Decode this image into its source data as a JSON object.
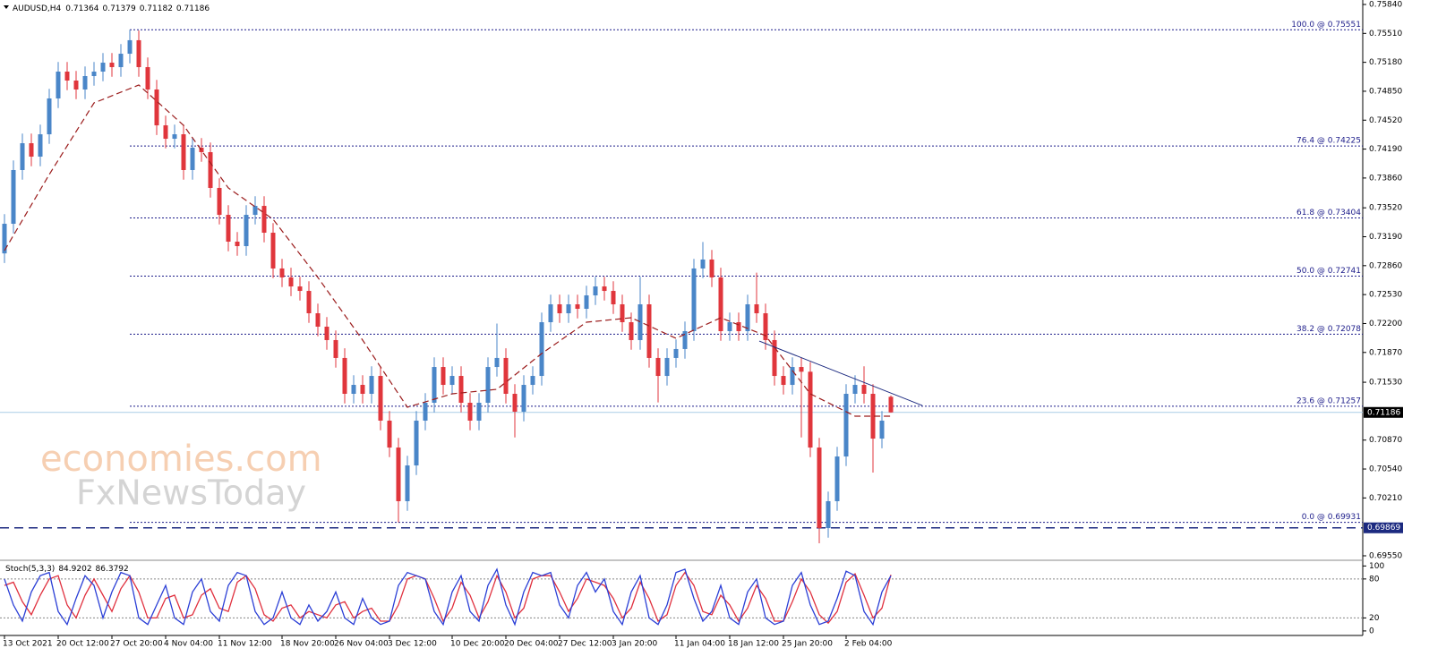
{
  "chart_data": [
    {
      "type": "candlestick",
      "title": "AUDUSD,H4",
      "categories": [
        "13 Oct 2021",
        null,
        null,
        null,
        null,
        null,
        "20 Oct 12:00",
        null,
        null,
        null,
        null,
        null,
        "27 Oct 20:00",
        null,
        null,
        null,
        null,
        null,
        "4 Nov 04:00",
        null,
        null,
        null,
        null,
        null,
        "11 Nov 12:00",
        null,
        null,
        null,
        null,
        null,
        null,
        "18 Nov 20:00",
        null,
        null,
        null,
        null,
        null,
        "26 Nov 04:00",
        null,
        null,
        null,
        null,
        null,
        "3 Dec 12:00",
        null,
        null,
        null,
        null,
        null,
        null,
        "10 Dec 20:00",
        null,
        null,
        null,
        null,
        null,
        "20 Dec 04:00",
        null,
        null,
        null,
        null,
        null,
        "27 Dec 12:00",
        null,
        null,
        null,
        null,
        null,
        "3 Jan 20:00",
        null,
        null,
        null,
        null,
        null,
        null,
        "11 Jan 04:00",
        null,
        null,
        null,
        null,
        null,
        "18 Jan 12:00",
        null,
        null,
        null,
        null,
        null,
        "25 Jan 20:00",
        null,
        null,
        null,
        null,
        null,
        null,
        "2 Feb 04:00",
        null,
        null,
        null,
        null,
        null
      ],
      "open": [
        0.73,
        0.73338,
        0.73951,
        0.74257,
        0.74104,
        0.74359,
        0.74768,
        0.75074,
        0.74972,
        0.7487,
        0.75023,
        0.75074,
        0.75176,
        0.75125,
        0.75278,
        0.75432,
        0.75125,
        0.7487,
        0.74461,
        0.74308,
        0.74359,
        0.73951,
        0.74206,
        0.74155,
        0.73747,
        0.7344,
        0.73134,
        0.73083,
        0.7344,
        0.73542,
        0.73236,
        0.72828,
        0.72726,
        0.72623,
        0.72572,
        0.72317,
        0.72164,
        0.72011,
        0.71807,
        0.71398,
        0.715,
        0.71398,
        0.71602,
        0.71092,
        0.70785,
        0.70173,
        0.70581,
        0.71092,
        0.71296,
        0.71704,
        0.715,
        0.71602,
        0.71296,
        0.71092,
        0.71296,
        0.71704,
        0.71807,
        0.71398,
        0.71194,
        0.715,
        0.71602,
        0.72215,
        0.72419,
        0.72317,
        0.72419,
        0.72368,
        0.72521,
        0.72623,
        0.72572,
        0.72419,
        0.72215,
        0.72011,
        0.72419,
        0.71807,
        0.71602,
        0.71807,
        0.71909,
        0.72113,
        0.72828,
        0.7293,
        0.72726,
        0.72113,
        0.72215,
        0.72113,
        0.72419,
        0.72317,
        0.72011,
        0.71602,
        0.715,
        0.71704,
        0.7165,
        0.70785,
        0.69866,
        0.70173,
        0.70683,
        0.71398,
        0.715,
        0.71398,
        0.70887,
        0.71364
      ],
      "high": [
        0.73448,
        0.74061,
        0.74367,
        0.74367,
        0.74469,
        0.74878,
        0.75184,
        0.75184,
        0.75082,
        0.75133,
        0.75184,
        0.75286,
        0.75286,
        0.75388,
        0.75551,
        0.75542,
        0.75235,
        0.7498,
        0.74571,
        0.74469,
        0.74469,
        0.74316,
        0.74316,
        0.74265,
        0.73857,
        0.7355,
        0.73244,
        0.7355,
        0.73652,
        0.73652,
        0.73346,
        0.72938,
        0.72836,
        0.72733,
        0.72682,
        0.72427,
        0.72274,
        0.72121,
        0.71917,
        0.7161,
        0.7161,
        0.71712,
        0.71712,
        0.71202,
        0.70895,
        0.70691,
        0.71202,
        0.71406,
        0.71814,
        0.71814,
        0.71712,
        0.71712,
        0.71406,
        0.71406,
        0.71814,
        0.722,
        0.71917,
        0.71508,
        0.7161,
        0.71712,
        0.72325,
        0.72529,
        0.72529,
        0.72529,
        0.72529,
        0.72631,
        0.72733,
        0.72733,
        0.72682,
        0.72529,
        0.72325,
        0.72733,
        0.72529,
        0.71917,
        0.71917,
        0.72019,
        0.72223,
        0.72938,
        0.7313,
        0.7304,
        0.72836,
        0.72325,
        0.72325,
        0.72529,
        0.7278,
        0.72427,
        0.72121,
        0.71712,
        0.71814,
        0.71814,
        0.7176,
        0.70895,
        0.70283,
        0.70793,
        0.71508,
        0.7161,
        0.71712,
        0.71508,
        0.71202,
        0.71379
      ],
      "low": [
        0.7289,
        0.73228,
        0.73841,
        0.73994,
        0.73994,
        0.74249,
        0.74658,
        0.74862,
        0.7476,
        0.7476,
        0.74913,
        0.74964,
        0.75015,
        0.75015,
        0.75168,
        0.75015,
        0.7476,
        0.74351,
        0.74198,
        0.74198,
        0.73841,
        0.73841,
        0.74045,
        0.73637,
        0.7333,
        0.73024,
        0.72973,
        0.72973,
        0.7333,
        0.73126,
        0.72718,
        0.72616,
        0.72513,
        0.72462,
        0.72207,
        0.72054,
        0.71901,
        0.71697,
        0.71288,
        0.71288,
        0.71288,
        0.71288,
        0.70982,
        0.70675,
        0.69931,
        0.70063,
        0.70471,
        0.70982,
        0.71186,
        0.7139,
        0.7139,
        0.71186,
        0.70982,
        0.70982,
        0.71186,
        0.71594,
        0.71288,
        0.709,
        0.71084,
        0.7139,
        0.71492,
        0.72105,
        0.72207,
        0.72207,
        0.72258,
        0.72258,
        0.72411,
        0.72462,
        0.72309,
        0.72105,
        0.71901,
        0.71901,
        0.71697,
        0.713,
        0.71492,
        0.71697,
        0.71799,
        0.72003,
        0.72718,
        0.72616,
        0.72003,
        0.72003,
        0.72003,
        0.72003,
        0.72207,
        0.71901,
        0.71492,
        0.7139,
        0.7139,
        0.709,
        0.70675,
        0.69693,
        0.69756,
        0.70063,
        0.70573,
        0.71288,
        0.71288,
        0.705,
        0.70777,
        0.71182
      ],
      "close": [
        0.73338,
        0.73951,
        0.74257,
        0.74104,
        0.74359,
        0.74768,
        0.75074,
        0.74972,
        0.7487,
        0.75023,
        0.75074,
        0.75176,
        0.75125,
        0.75278,
        0.75432,
        0.75125,
        0.7487,
        0.74461,
        0.74308,
        0.74359,
        0.73951,
        0.74206,
        0.74155,
        0.73747,
        0.7344,
        0.73134,
        0.73083,
        0.7344,
        0.73542,
        0.73236,
        0.72828,
        0.72726,
        0.72623,
        0.72572,
        0.72317,
        0.72164,
        0.72011,
        0.71807,
        0.71398,
        0.715,
        0.71398,
        0.71602,
        0.71092,
        0.70785,
        0.70173,
        0.70581,
        0.71092,
        0.71296,
        0.71704,
        0.715,
        0.71602,
        0.71296,
        0.71092,
        0.71296,
        0.71704,
        0.71807,
        0.71398,
        0.71194,
        0.715,
        0.71602,
        0.72215,
        0.72419,
        0.72317,
        0.72419,
        0.72368,
        0.72521,
        0.72623,
        0.72572,
        0.72419,
        0.72215,
        0.72011,
        0.72419,
        0.71807,
        0.71602,
        0.71807,
        0.71909,
        0.72113,
        0.72828,
        0.7293,
        0.72726,
        0.72113,
        0.72215,
        0.72113,
        0.72419,
        0.72317,
        0.72011,
        0.71602,
        0.715,
        0.71704,
        0.7165,
        0.70785,
        0.69866,
        0.70173,
        0.70683,
        0.71398,
        0.715,
        0.71398,
        0.70887,
        0.71092,
        0.71186
      ],
      "up_color": "#4a86c8",
      "down_color": "#e0363c",
      "ylim": [
        0.69509,
        0.75891
      ],
      "yticks": [
        {
          "value": 0.7584,
          "label": "0.75840"
        },
        {
          "value": 0.7551,
          "label": "0.75510"
        },
        {
          "value": 0.7518,
          "label": "0.75180"
        },
        {
          "value": 0.7485,
          "label": "0.74850"
        },
        {
          "value": 0.7452,
          "label": "0.74520"
        },
        {
          "value": 0.7419,
          "label": "0.74190"
        },
        {
          "value": 0.7386,
          "label": "0.73860"
        },
        {
          "value": 0.7352,
          "label": "0.73520"
        },
        {
          "value": 0.7319,
          "label": "0.73190"
        },
        {
          "value": 0.7286,
          "label": "0.72860"
        },
        {
          "value": 0.7253,
          "label": "0.72530"
        },
        {
          "value": 0.722,
          "label": "0.72200"
        },
        {
          "value": 0.7187,
          "label": "0.71870"
        },
        {
          "value": 0.7153,
          "label": "0.71530"
        },
        {
          "value": 0.7087,
          "label": "0.70870"
        },
        {
          "value": 0.7054,
          "label": "0.70540"
        },
        {
          "value": 0.7021,
          "label": "0.70210"
        },
        {
          "value": 0.6955,
          "label": "0.69550"
        }
      ],
      "ma": {
        "color": "#9b1c1c",
        "x": [
          0,
          5,
          10,
          15,
          20,
          25,
          30,
          35,
          40,
          45,
          50,
          55,
          60,
          65,
          70,
          75,
          80,
          85,
          90,
          95,
          99
        ],
        "values": [
          0.73032,
          0.739,
          0.74717,
          0.74921,
          0.74461,
          0.73747,
          0.73389,
          0.72726,
          0.72011,
          0.71245,
          0.71398,
          0.71449,
          0.71858,
          0.72215,
          0.72266,
          0.72031,
          0.72266,
          0.72062,
          0.71398,
          0.71143,
          0.71143
        ]
      },
      "levels_color": "#1c1c8a",
      "levels": [
        {
          "label": "100.0 @ 0.75551",
          "value": 0.75551
        },
        {
          "label": "76.4 @ 0.74225",
          "value": 0.74225
        },
        {
          "label": "61.8 @ 0.73404",
          "value": 0.73404
        },
        {
          "label": "50.0 @ 0.72741",
          "value": 0.72741
        },
        {
          "label": "38.2 @ 0.72078",
          "value": 0.72078
        },
        {
          "label": "23.6 @ 0.71257",
          "value": 0.71257
        },
        {
          "label": "0.0 @ 0.69931",
          "value": 0.69931
        }
      ],
      "hline": {
        "value": 0.69869,
        "color": "#1c2a80"
      },
      "price_line_color": "#a9cde6",
      "trendline": {
        "color": "#1c2a80",
        "x": [
          84.3,
          102.5
        ],
        "values": [
          0.72,
          0.71265
        ]
      },
      "watermark": [
        "economies.com",
        "FxNewsToday"
      ]
    },
    {
      "type": "line",
      "title": "Stoch(5,3,3)",
      "series": [
        {
          "color": "#2b3fd6",
          "values": [
            80,
            40,
            15,
            60,
            85,
            90,
            30,
            10,
            50,
            85,
            70,
            20,
            60,
            90,
            85,
            20,
            10,
            40,
            70,
            20,
            10,
            60,
            80,
            30,
            15,
            70,
            90,
            85,
            30,
            10,
            20,
            60,
            20,
            10,
            40,
            15,
            30,
            60,
            20,
            10,
            50,
            20,
            10,
            15,
            70,
            90,
            85,
            80,
            30,
            10,
            60,
            85,
            30,
            15,
            70,
            95,
            40,
            10,
            60,
            90,
            85,
            90,
            40,
            20,
            70,
            90,
            60,
            80,
            30,
            10,
            60,
            85,
            20,
            10,
            40,
            90,
            95,
            50,
            15,
            30,
            70,
            20,
            10,
            60,
            80,
            20,
            10,
            15,
            70,
            90,
            40,
            10,
            15,
            50,
            92,
            85,
            30,
            10,
            60,
            84.9202
          ]
        },
        {
          "color": "#e0303e",
          "values": [
            70,
            75,
            45,
            25,
            55,
            80,
            85,
            40,
            20,
            55,
            80,
            55,
            30,
            65,
            85,
            60,
            20,
            20,
            50,
            55,
            20,
            25,
            55,
            65,
            35,
            30,
            75,
            85,
            65,
            25,
            15,
            35,
            40,
            20,
            30,
            25,
            20,
            40,
            45,
            20,
            30,
            35,
            15,
            15,
            40,
            80,
            85,
            80,
            50,
            15,
            35,
            75,
            55,
            20,
            45,
            85,
            60,
            20,
            35,
            80,
            85,
            85,
            60,
            30,
            50,
            80,
            75,
            70,
            50,
            20,
            35,
            75,
            50,
            15,
            25,
            70,
            90,
            70,
            30,
            25,
            55,
            40,
            15,
            35,
            70,
            50,
            15,
            15,
            45,
            80,
            60,
            25,
            12,
            30,
            75,
            88,
            55,
            20,
            35,
            86.3792
          ]
        }
      ],
      "ylim": [
        -7,
        106
      ],
      "yticks": [
        0,
        20,
        80,
        100
      ],
      "levels": [
        20,
        80
      ]
    }
  ]
}
